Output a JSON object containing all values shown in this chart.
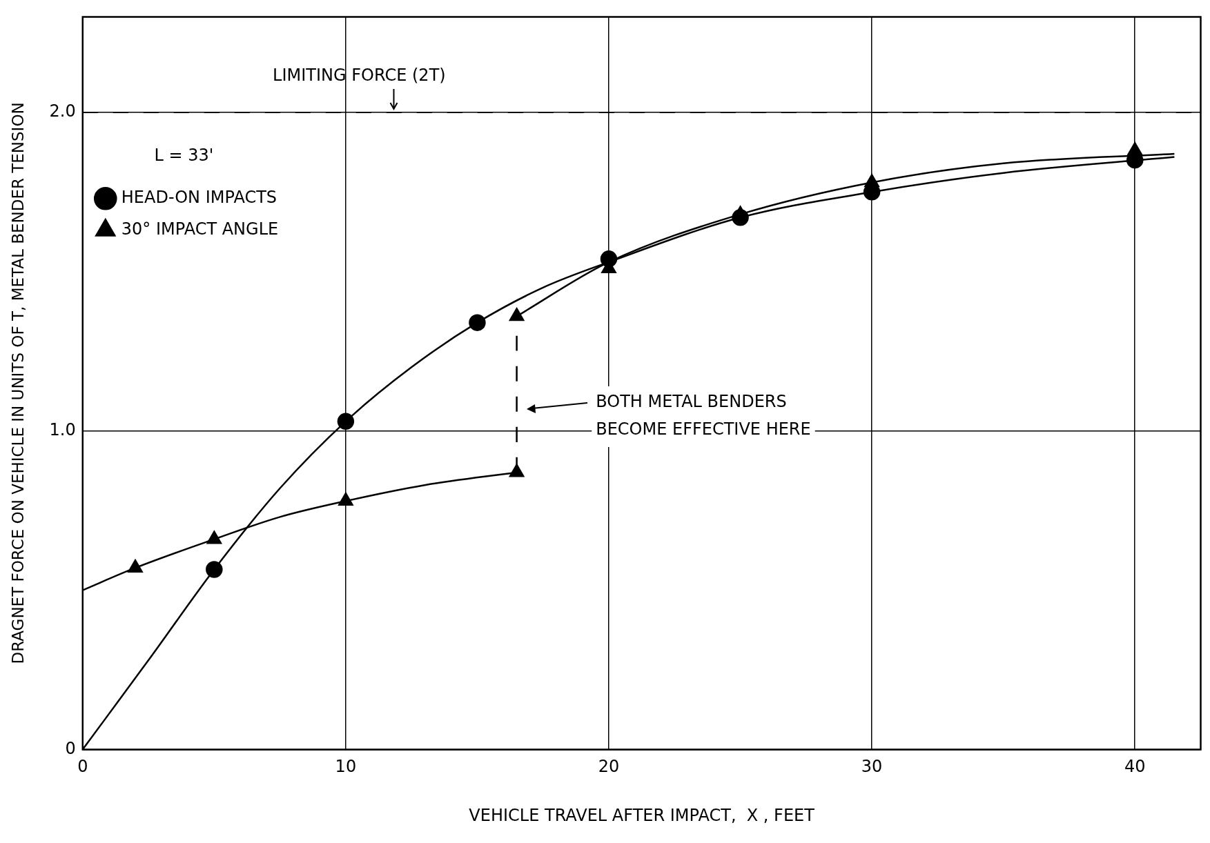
{
  "chart_data": {
    "type": "line",
    "xlabel": "VEHICLE TRAVEL AFTER IMPACT,  X , FEET",
    "ylabel": "DRAGNET FORCE ON VEHICLE IN UNITS OF T, METAL BENDER TENSION",
    "legend_title": "L = 33'",
    "legend": "top left",
    "grid": true,
    "xlim": [
      0,
      42.5
    ],
    "xticks": [
      0,
      10,
      20,
      30,
      40
    ],
    "ylim": [
      0,
      2.3
    ],
    "yticks": [
      0,
      {
        "value": 1,
        "label": "1.0"
      },
      {
        "value": 2,
        "label": "2.0"
      }
    ],
    "series": [
      {
        "type": "line",
        "color": "#000000",
        "marker": "none",
        "x": [
          0,
          2.5,
          5,
          7.5,
          10,
          12.5,
          15,
          17.5,
          20,
          25,
          30,
          35,
          41.5
        ],
        "values": [
          0,
          0.28,
          0.565,
          0.82,
          1.03,
          1.2,
          1.34,
          1.45,
          1.53,
          1.67,
          1.75,
          1.81,
          1.86
        ]
      },
      {
        "type": "line",
        "color": "#000000",
        "marker": "none",
        "x": [
          0,
          2,
          5,
          7.5,
          10,
          13,
          16.5
        ],
        "values": [
          0.5,
          0.57,
          0.66,
          0.73,
          0.78,
          0.83,
          0.87
        ]
      },
      {
        "type": "line",
        "color": "#000000",
        "marker": "none",
        "x": [
          16.5,
          20,
          25,
          30,
          35,
          41.5
        ],
        "values": [
          1.36,
          1.53,
          1.68,
          1.78,
          1.84,
          1.87
        ]
      },
      {
        "type": "line",
        "color": "#000000",
        "marker": "none",
        "line_style": "dashed",
        "x": [
          16.5,
          16.5
        ],
        "values": [
          0.87,
          1.36
        ]
      },
      {
        "type": "scatter",
        "name": "HEAD-ON IMPACTS",
        "color": "#000000",
        "marker": "circle",
        "x": [
          5,
          10,
          15,
          20,
          25,
          30,
          40
        ],
        "values": [
          0.565,
          1.03,
          1.34,
          1.54,
          1.67,
          1.75,
          1.85
        ]
      },
      {
        "type": "scatter",
        "name": "30° IMPACT ANGLE",
        "color": "#000000",
        "marker": "triangle",
        "x": [
          2,
          5,
          10,
          16.5,
          16.5,
          20,
          25,
          30,
          40
        ],
        "values": [
          0.57,
          0.66,
          0.78,
          0.87,
          1.36,
          1.51,
          1.68,
          1.78,
          1.88
        ]
      }
    ],
    "ref_lines": [
      {
        "axis": "y",
        "value": 2,
        "label": "LIMITING FORCE (2T)",
        "line_style": "dashed",
        "color": "#000000"
      }
    ],
    "annotations": [
      "BOTH METAL BENDERS\nBECOME EFFECTIVE HERE"
    ]
  }
}
